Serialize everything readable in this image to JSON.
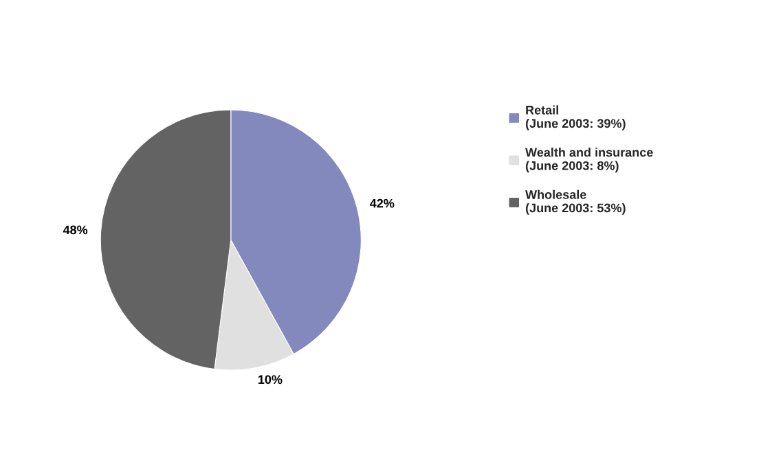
{
  "chart_data": {
    "type": "pie",
    "categories": [
      "Retail\n(June 2003: 39%)",
      "Wealth and insurance\n(June 2003: 8%)",
      "Wholesale\n(June 2003: 53%)"
    ],
    "values": [
      42,
      10,
      48
    ],
    "value_labels": [
      "42%",
      "10%",
      "48%"
    ],
    "colors": [
      "#8489bd",
      "#e0e0e0",
      "#636363"
    ],
    "legend": "right"
  }
}
